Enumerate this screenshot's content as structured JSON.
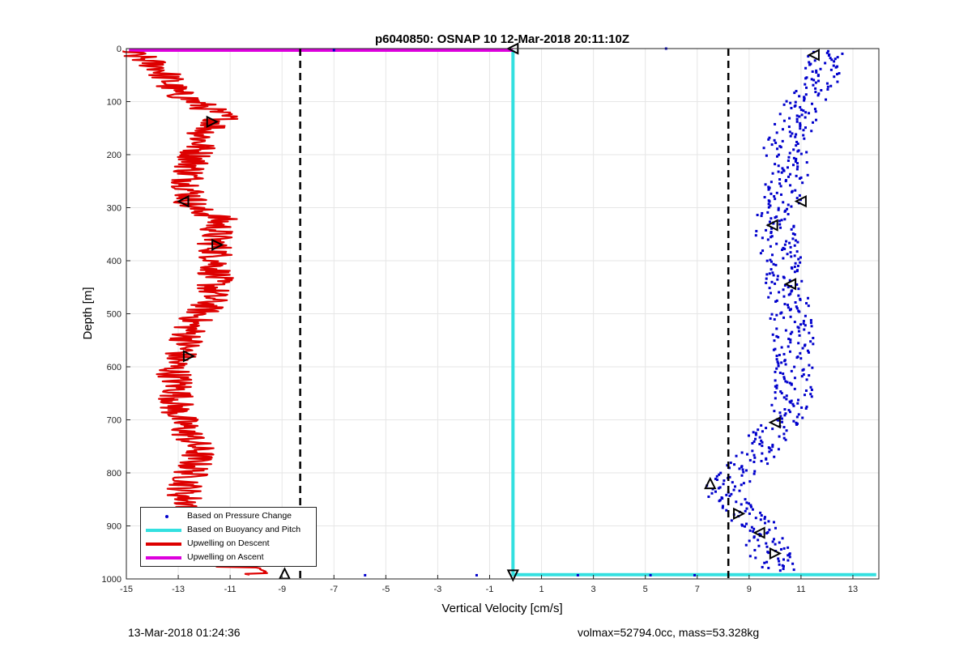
{
  "chart_data": {
    "type": "scatter",
    "title": "p6040850: OSNAP 10 12-Mar-2018 20:11:10Z",
    "xlabel": "Vertical Velocity [cm/s]",
    "ylabel": "Depth [m]",
    "xlim": [
      -15,
      14
    ],
    "ylim": [
      0,
      1000
    ],
    "y_reversed": true,
    "grid": true,
    "xticks": [
      -15,
      -13,
      -11,
      -9,
      -7,
      -5,
      -3,
      -1,
      1,
      3,
      5,
      7,
      9,
      11,
      13
    ],
    "yticks": [
      0,
      100,
      200,
      300,
      400,
      500,
      600,
      700,
      800,
      900,
      1000
    ],
    "colors": {
      "pressure": "#0000cc",
      "buoyancy": "#33e0e0",
      "descent": "#dd0000",
      "ascent": "#dd00dd",
      "threshold": "#000000"
    },
    "legend": {
      "placement": "bottom-left",
      "entries": [
        "Based on Pressure Change",
        "Based on Buoyancy and Pitch",
        "Upwelling on Descent",
        "Upwelling on Ascent"
      ]
    },
    "series": [
      {
        "name": "Based on Pressure Change",
        "style": "dots",
        "color": "#0000cc",
        "profile": [
          [
            0,
            11.8
          ],
          [
            50,
            11.8
          ],
          [
            100,
            11.2
          ],
          [
            140,
            10.8
          ],
          [
            180,
            10.3
          ],
          [
            220,
            10.6
          ],
          [
            260,
            10.4
          ],
          [
            300,
            10.1
          ],
          [
            350,
            10.0
          ],
          [
            400,
            10.3
          ],
          [
            450,
            10.4
          ],
          [
            500,
            10.6
          ],
          [
            560,
            10.7
          ],
          [
            620,
            10.8
          ],
          [
            680,
            10.6
          ],
          [
            720,
            9.9
          ],
          [
            760,
            9.4
          ],
          [
            800,
            8.7
          ],
          [
            830,
            7.9
          ],
          [
            850,
            8.3
          ],
          [
            880,
            8.9
          ],
          [
            910,
            9.5
          ],
          [
            940,
            9.7
          ],
          [
            980,
            10.0
          ]
        ],
        "spread": 0.8
      },
      {
        "name": "Based on Buoyancy and Pitch",
        "style": "line",
        "color": "#33e0e0",
        "points": [
          [
            -0.1,
            3
          ],
          [
            -0.1,
            992
          ],
          [
            13.9,
            992
          ]
        ]
      },
      {
        "name": "Upwelling on Descent",
        "style": "jagged-line",
        "color": "#dd0000",
        "profile": [
          [
            5,
            -15
          ],
          [
            10,
            -14.8
          ],
          [
            20,
            -14.3
          ],
          [
            40,
            -13.6
          ],
          [
            80,
            -13.2
          ],
          [
            110,
            -12.0
          ],
          [
            130,
            -11.2
          ],
          [
            160,
            -12.0
          ],
          [
            200,
            -12.3
          ],
          [
            240,
            -12.6
          ],
          [
            280,
            -12.5
          ],
          [
            300,
            -12.5
          ],
          [
            320,
            -11.4
          ],
          [
            360,
            -11.6
          ],
          [
            400,
            -11.5
          ],
          [
            440,
            -11.6
          ],
          [
            480,
            -11.8
          ],
          [
            520,
            -12.5
          ],
          [
            560,
            -12.7
          ],
          [
            600,
            -13.2
          ],
          [
            640,
            -13.0
          ],
          [
            680,
            -13.1
          ],
          [
            720,
            -12.7
          ],
          [
            760,
            -12.2
          ],
          [
            800,
            -12.5
          ],
          [
            840,
            -12.8
          ],
          [
            880,
            -12.3
          ],
          [
            920,
            -11.8
          ],
          [
            950,
            -11.7
          ],
          [
            975,
            -11.2
          ],
          [
            985,
            -9.5
          ],
          [
            992,
            -9.8
          ]
        ],
        "spread": 0.7
      },
      {
        "name": "Upwelling on Ascent",
        "style": "line",
        "color": "#dd00dd",
        "points": [
          [
            -14.9,
            3
          ],
          [
            -0.1,
            3
          ]
        ]
      }
    ],
    "threshold_lines": [
      -8.3,
      8.2
    ],
    "triangles": [
      {
        "x": -0.1,
        "y": 0,
        "dir": "left"
      },
      {
        "x": 11.5,
        "y": 12,
        "dir": "left"
      },
      {
        "x": -11.7,
        "y": 138,
        "dir": "right"
      },
      {
        "x": -12.8,
        "y": 288,
        "dir": "left"
      },
      {
        "x": 11.0,
        "y": 288,
        "dir": "left"
      },
      {
        "x": 9.9,
        "y": 333,
        "dir": "left"
      },
      {
        "x": -11.5,
        "y": 370,
        "dir": "right"
      },
      {
        "x": 10.6,
        "y": 444,
        "dir": "left"
      },
      {
        "x": -12.6,
        "y": 580,
        "dir": "right"
      },
      {
        "x": 10.0,
        "y": 705,
        "dir": "left"
      },
      {
        "x": 7.5,
        "y": 820,
        "dir": "up"
      },
      {
        "x": 8.6,
        "y": 877,
        "dir": "right"
      },
      {
        "x": 9.4,
        "y": 913,
        "dir": "left"
      },
      {
        "x": -11.1,
        "y": 932,
        "dir": "right"
      },
      {
        "x": 10.0,
        "y": 952,
        "dir": "right"
      },
      {
        "x": -8.9,
        "y": 990,
        "dir": "up"
      },
      {
        "x": -0.1,
        "y": 993,
        "dir": "down"
      }
    ],
    "outlier_points": [
      [
        5.8,
        0
      ],
      [
        -7,
        3
      ],
      [
        -5.8,
        993
      ],
      [
        -1.5,
        993
      ],
      [
        2.4,
        993
      ],
      [
        6.9,
        993
      ],
      [
        5.2,
        993
      ]
    ]
  },
  "footer": {
    "timestamp": "13-Mar-2018 01:24:36",
    "vol_mass": "volmax=52794.0cc, mass=53.328kg"
  }
}
